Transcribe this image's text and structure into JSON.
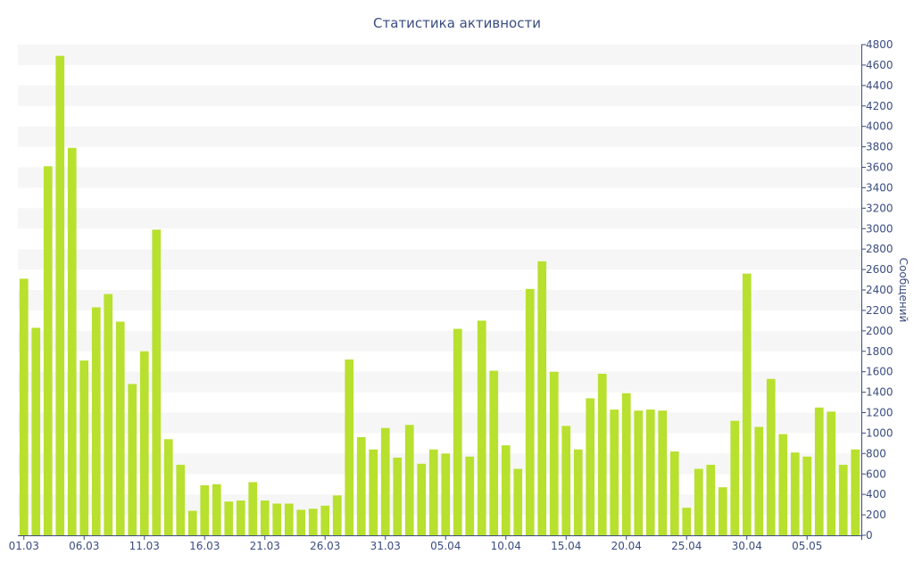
{
  "chart_data": {
    "type": "bar",
    "title": "Статистика активности",
    "xlabel": "",
    "ylabel": "Сообщений",
    "ylim": [
      0,
      4800
    ],
    "yticks": [
      0,
      200,
      400,
      600,
      800,
      1000,
      1200,
      1400,
      1600,
      1800,
      2000,
      2200,
      2400,
      2600,
      2800,
      3000,
      3200,
      3400,
      3600,
      3800,
      4000,
      4200,
      4400,
      4600,
      4800
    ],
    "y_axis_side": "right",
    "grid": "alternating horizontal bands",
    "colors": {
      "bar": "#b8e02e",
      "band": "#f6f6f6",
      "axis": "#3a4d80"
    },
    "x_tick_labels": [
      "01.03",
      "06.03",
      "11.03",
      "16.03",
      "21.03",
      "26.03",
      "31.03",
      "05.04",
      "10.04",
      "15.04",
      "20.04",
      "25.04",
      "30.04",
      "05.05"
    ],
    "x_tick_every": 5,
    "values": [
      2510,
      2030,
      3610,
      4690,
      3790,
      1710,
      2230,
      2360,
      2090,
      1480,
      1800,
      2990,
      940,
      690,
      240,
      490,
      500,
      330,
      340,
      520,
      340,
      310,
      310,
      250,
      260,
      290,
      390,
      1720,
      960,
      840,
      1050,
      760,
      1080,
      700,
      840,
      800,
      2020,
      770,
      2100,
      1610,
      880,
      650,
      2410,
      2680,
      1600,
      1070,
      840,
      1340,
      1580,
      1230,
      1390,
      1220,
      1230,
      1220,
      820,
      270,
      650,
      690,
      470,
      1120,
      2560,
      1060,
      1530,
      990,
      810,
      770,
      1250,
      1210,
      690,
      840
    ]
  }
}
